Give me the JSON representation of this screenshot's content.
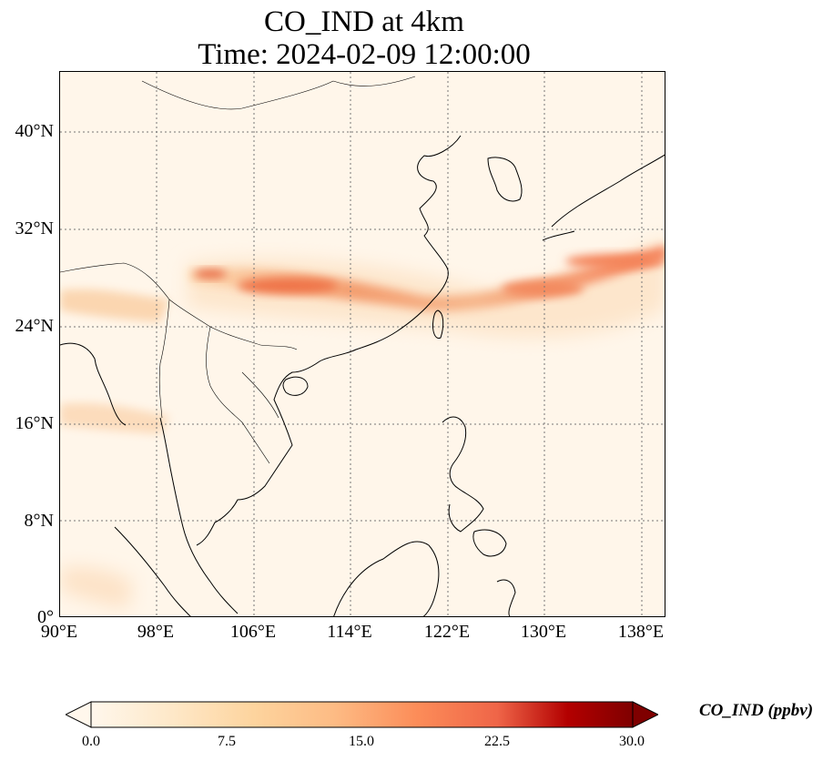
{
  "title": {
    "line1": "CO_IND at 4km",
    "line2": "Time: 2024-02-09 12:00:00"
  },
  "map": {
    "projection": "PlateCarree",
    "lon_range": [
      90,
      140
    ],
    "lat_range": [
      0,
      45
    ],
    "gridlines": "dotted",
    "lat_ticks": [
      "40°N",
      "32°N",
      "24°N",
      "16°N",
      "8°N",
      "0°"
    ],
    "lon_ticks": [
      "90°E",
      "98°E",
      "106°E",
      "114°E",
      "122°E",
      "130°E",
      "138°E"
    ],
    "features": [
      "coastlines",
      "country-borders"
    ]
  },
  "colorbar": {
    "label": "CO_IND (ppbv)",
    "colormap": "OrRd",
    "ticks": [
      "0.0",
      "7.5",
      "15.0",
      "22.5",
      "30.0"
    ],
    "range": [
      0,
      30
    ],
    "extend": "both"
  },
  "colors": {
    "map_background": "#fff6ea",
    "plume_low": "#fde3c5",
    "plume_high": "#e8633f"
  }
}
